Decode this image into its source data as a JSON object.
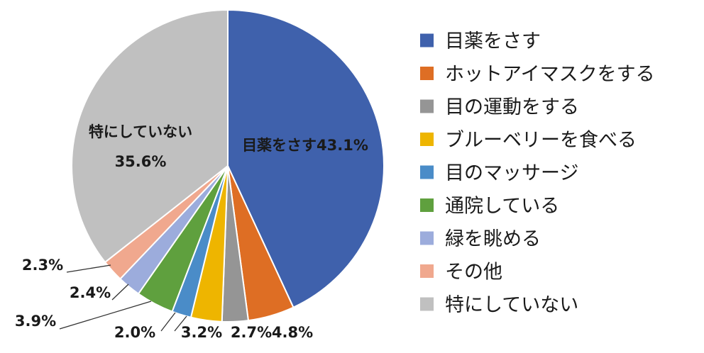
{
  "chart_data": {
    "type": "pie",
    "start_angle_deg": 90,
    "direction": "clockwise",
    "legend_position": "right",
    "slices": [
      {
        "name": "目薬をさす",
        "value": 43.1,
        "label": "43.1%",
        "color": "#3F61AC"
      },
      {
        "name": "ホットアイマスクをする",
        "value": 4.8,
        "label": "4.8%",
        "color": "#DE6E24"
      },
      {
        "name": "目の運動をする",
        "value": 2.7,
        "label": "2.7%",
        "color": "#959595"
      },
      {
        "name": "ブルーベリーを食べる",
        "value": 3.2,
        "label": "3.2%",
        "color": "#EEB500"
      },
      {
        "name": "目のマッサージ",
        "value": 2.0,
        "label": "2.0%",
        "color": "#4A8CC8"
      },
      {
        "name": "通院している",
        "value": 3.9,
        "label": "3.9%",
        "color": "#5FA03E"
      },
      {
        "name": "緑を眺める",
        "value": 2.4,
        "label": "2.4%",
        "color": "#9CACDC"
      },
      {
        "name": "その他",
        "value": 2.3,
        "label": "2.3%",
        "color": "#F0A88E"
      },
      {
        "name": "特にしていない",
        "value": 35.6,
        "label": "35.6%",
        "color": "#C0C0C0"
      }
    ]
  }
}
